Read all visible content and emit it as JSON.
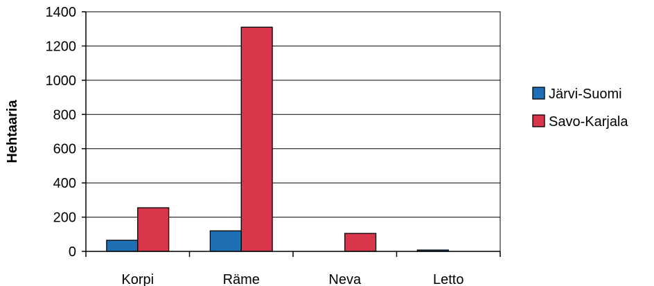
{
  "chart_data": {
    "type": "bar",
    "title": "",
    "xlabel": "",
    "ylabel": "Hehtaaria",
    "ylim": [
      0,
      1400
    ],
    "yticks": [
      0,
      200,
      400,
      600,
      800,
      1000,
      1200,
      1400
    ],
    "grid": true,
    "legend_position": "right",
    "categories": [
      "Korpi",
      "Räme",
      "Neva",
      "Letto"
    ],
    "series": [
      {
        "name": "Järvi-Suomi",
        "color": "#1f6fb5",
        "values": [
          65,
          120,
          0,
          8
        ]
      },
      {
        "name": "Savo-Karjala",
        "color": "#d8364b",
        "values": [
          255,
          1310,
          105,
          0
        ]
      }
    ]
  }
}
